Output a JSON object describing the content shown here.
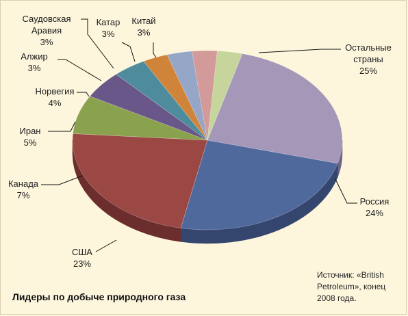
{
  "chart_data": {
    "type": "pie",
    "title": "Лидеры по добыче природного газа",
    "source_note": "Источник: «British Petroleum», конец 2008 года.",
    "slices": [
      {
        "label": "Остальные страны",
        "label_lines": [
          "Остальные",
          "страны"
        ],
        "value_text": "25%",
        "value": 25,
        "color": "#a497b8",
        "side": "#6e6485"
      },
      {
        "label": "Россия",
        "label_lines": [
          "Россия"
        ],
        "value_text": "24%",
        "value": 24,
        "color": "#50699d",
        "side": "#34466e"
      },
      {
        "label": "США",
        "label_lines": [
          "США"
        ],
        "value_text": "23%",
        "value": 23,
        "color": "#9b4845",
        "side": "#6b2e2c"
      },
      {
        "label": "Канада",
        "label_lines": [
          "Канада"
        ],
        "value_text": "7%",
        "value": 7,
        "color": "#8aa14e",
        "side": "#5e7233"
      },
      {
        "label": "Иран",
        "label_lines": [
          "Иран"
        ],
        "value_text": "5%",
        "value": 5,
        "color": "#6a5789",
        "side": "#473a5e"
      },
      {
        "label": "Норвегия",
        "label_lines": [
          "Норвегия"
        ],
        "value_text": "4%",
        "value": 4,
        "color": "#4d8b9d",
        "side": "#315f6c"
      },
      {
        "label": "Алжир",
        "label_lines": [
          "Алжир"
        ],
        "value_text": "3%",
        "value": 3,
        "color": "#d0843a",
        "side": "#945b24"
      },
      {
        "label": "Саудовская Аравия",
        "label_lines": [
          "Саудовская",
          "Аравия"
        ],
        "value_text": "3%",
        "value": 3,
        "color": "#95a6c6",
        "side": "#66758f"
      },
      {
        "label": "Катар",
        "label_lines": [
          "Катар"
        ],
        "value_text": "3%",
        "value": 3,
        "color": "#d29a98",
        "side": "#9a6b69"
      },
      {
        "label": "Китай",
        "label_lines": [
          "Китай"
        ],
        "value_text": "3%",
        "value": 3,
        "color": "#c6d59b",
        "side": "#8e9a6b"
      }
    ]
  }
}
